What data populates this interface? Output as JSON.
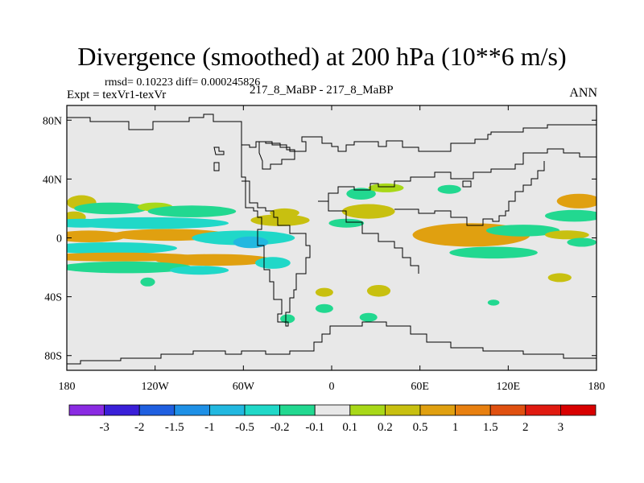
{
  "chart_data": {
    "type": "heatmap",
    "title": "Divergence (smoothed) at 200 hPa (10**6 m/s)",
    "stats": "rmsd= 0.10223 diff= 0.000245826",
    "expt": "Expt = texVr1-texVr",
    "case": "217_8_MaBP - 217_8_MaBP",
    "season": "ANN",
    "x_ticks": [
      {
        "value": -180,
        "label": "180"
      },
      {
        "value": -120,
        "label": "120W"
      },
      {
        "value": -60,
        "label": "60W"
      },
      {
        "value": 0,
        "label": "0"
      },
      {
        "value": 60,
        "label": "60E"
      },
      {
        "value": 120,
        "label": "120E"
      },
      {
        "value": 180,
        "label": "180"
      }
    ],
    "y_ticks": [
      {
        "value": 80,
        "label": "80N"
      },
      {
        "value": 40,
        "label": "40N"
      },
      {
        "value": 0,
        "label": "0"
      },
      {
        "value": -40,
        "label": "40S"
      },
      {
        "value": -80,
        "label": "80S"
      }
    ],
    "xlim": [
      -180,
      180
    ],
    "ylim": [
      -90,
      90
    ],
    "levels": [
      "-3",
      "-2",
      "-1.5",
      "-1",
      "-0.5",
      "-0.2",
      "-0.1",
      "0.1",
      "0.2",
      "0.5",
      "1",
      "1.5",
      "2",
      "3"
    ],
    "colors": [
      "#8a2be2",
      "#3a1fd8",
      "#1f5fe0",
      "#1e90e6",
      "#22b8e0",
      "#20d8c8",
      "#22d890",
      "#e8e8e8",
      "#a8d818",
      "#c8c010",
      "#e0a010",
      "#e88010",
      "#e05010",
      "#e01a10",
      "#d80000"
    ],
    "field_description": "Bands of positive (yellow-olive) and negative (cyan-teal) anomalies in the tropics between about 30S and 30N; near-zero elsewhere.",
    "blobs": [
      {
        "lon": -170,
        "lat": 24,
        "rx": 10,
        "ry": 5,
        "value": 0.3
      },
      {
        "lon": -150,
        "lat": 20,
        "rx": 25,
        "ry": 4,
        "value": -0.15
      },
      {
        "lon": -120,
        "lat": 21,
        "rx": 12,
        "ry": 3,
        "value": 0.15
      },
      {
        "lon": -95,
        "lat": 18,
        "rx": 30,
        "ry": 4,
        "value": -0.15
      },
      {
        "lon": -175,
        "lat": 14,
        "rx": 8,
        "ry": 4,
        "value": 0.25
      },
      {
        "lon": -170,
        "lat": 10,
        "rx": 22,
        "ry": 3,
        "value": -0.3
      },
      {
        "lon": -125,
        "lat": 10,
        "rx": 55,
        "ry": 4,
        "value": -0.4
      },
      {
        "lon": -110,
        "lat": 2,
        "rx": 40,
        "ry": 4,
        "value": 0.5
      },
      {
        "lon": -165,
        "lat": 1,
        "rx": 25,
        "ry": 4,
        "value": 0.5
      },
      {
        "lon": -60,
        "lat": 0,
        "rx": 35,
        "ry": 5,
        "value": -0.4
      },
      {
        "lon": -55,
        "lat": -3,
        "rx": 12,
        "ry": 4,
        "value": -0.7
      },
      {
        "lon": -150,
        "lat": -7,
        "rx": 45,
        "ry": 4,
        "value": -0.4
      },
      {
        "lon": -145,
        "lat": -13,
        "rx": 55,
        "ry": 3,
        "value": 0.6
      },
      {
        "lon": -80,
        "lat": -15,
        "rx": 40,
        "ry": 4,
        "value": 0.5
      },
      {
        "lon": -140,
        "lat": -20,
        "rx": 45,
        "ry": 4,
        "value": -0.2
      },
      {
        "lon": -90,
        "lat": -22,
        "rx": 20,
        "ry": 3,
        "value": -0.5
      },
      {
        "lon": -40,
        "lat": -17,
        "rx": 12,
        "ry": 4,
        "value": -0.3
      },
      {
        "lon": -35,
        "lat": 12,
        "rx": 20,
        "ry": 4,
        "value": 0.4
      },
      {
        "lon": -32,
        "lat": 17,
        "rx": 10,
        "ry": 3,
        "value": 0.2
      },
      {
        "lon": 25,
        "lat": 18,
        "rx": 18,
        "ry": 5,
        "value": 0.3
      },
      {
        "lon": 20,
        "lat": 30,
        "rx": 10,
        "ry": 4,
        "value": -0.15
      },
      {
        "lon": 37,
        "lat": 34,
        "rx": 12,
        "ry": 3,
        "value": 0.15
      },
      {
        "lon": 80,
        "lat": 33,
        "rx": 8,
        "ry": 3,
        "value": -0.15
      },
      {
        "lon": 10,
        "lat": 10,
        "rx": 12,
        "ry": 3,
        "value": -0.15
      },
      {
        "lon": 95,
        "lat": 2,
        "rx": 40,
        "ry": 8,
        "value": 0.6
      },
      {
        "lon": 90,
        "lat": 0,
        "rx": 25,
        "ry": 5,
        "value": 0.9
      },
      {
        "lon": 130,
        "lat": 5,
        "rx": 25,
        "ry": 4,
        "value": -0.2
      },
      {
        "lon": 110,
        "lat": -10,
        "rx": 30,
        "ry": 4,
        "value": -0.2
      },
      {
        "lon": 168,
        "lat": 25,
        "rx": 15,
        "ry": 5,
        "value": 0.6
      },
      {
        "lon": 165,
        "lat": 15,
        "rx": 20,
        "ry": 4,
        "value": -0.15
      },
      {
        "lon": 160,
        "lat": 2,
        "rx": 15,
        "ry": 3,
        "value": 0.2
      },
      {
        "lon": 170,
        "lat": -3,
        "rx": 10,
        "ry": 3,
        "value": -0.15
      },
      {
        "lon": 155,
        "lat": -27,
        "rx": 8,
        "ry": 3,
        "value": 0.2
      },
      {
        "lon": -5,
        "lat": -37,
        "rx": 6,
        "ry": 3,
        "value": 0.2
      },
      {
        "lon": 32,
        "lat": -36,
        "rx": 8,
        "ry": 4,
        "value": 0.2
      },
      {
        "lon": -5,
        "lat": -48,
        "rx": 6,
        "ry": 3,
        "value": -0.15
      },
      {
        "lon": 25,
        "lat": -54,
        "rx": 6,
        "ry": 3,
        "value": -0.15
      },
      {
        "lon": -30,
        "lat": -55,
        "rx": 5,
        "ry": 3,
        "value": -0.15
      },
      {
        "lon": 110,
        "lat": -44,
        "rx": 4,
        "ry": 2,
        "value": -0.15
      },
      {
        "lon": -125,
        "lat": -30,
        "rx": 5,
        "ry": 3,
        "value": -0.15
      }
    ]
  }
}
